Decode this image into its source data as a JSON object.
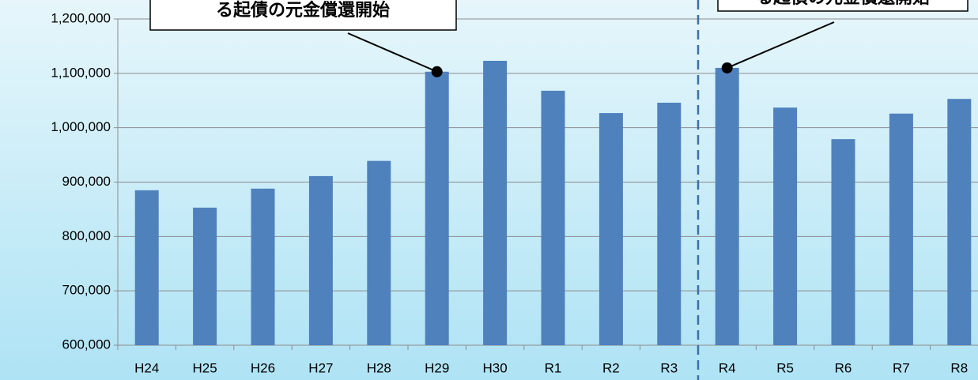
{
  "chart_data": {
    "type": "bar",
    "categories": [
      "H24",
      "H25",
      "H26",
      "H27",
      "H28",
      "H29",
      "H30",
      "R1",
      "R2",
      "R3",
      "R4",
      "R5",
      "R6",
      "R7",
      "R8"
    ],
    "values": [
      885000,
      853000,
      888000,
      911000,
      939000,
      1103000,
      1123000,
      1068000,
      1027000,
      1046000,
      1110000,
      1037000,
      979000,
      1026000,
      1053000
    ],
    "color": "#4f81bd",
    "ylim": [
      600000,
      1200000
    ],
    "yticks": [
      {
        "value": 600000,
        "label": "600,000"
      },
      {
        "value": 700000,
        "label": "700,000"
      },
      {
        "value": 800000,
        "label": "800,000"
      },
      {
        "value": 900000,
        "label": "900,000"
      },
      {
        "value": 1000000,
        "label": "1,000,000"
      },
      {
        "value": 1100000,
        "label": "1,100,000"
      },
      {
        "value": 1200000,
        "label": "1,200,000"
      }
    ],
    "grid": true,
    "annotations": [
      "る起債の元金償還開始",
      "る起債の元金償還開始"
    ]
  }
}
